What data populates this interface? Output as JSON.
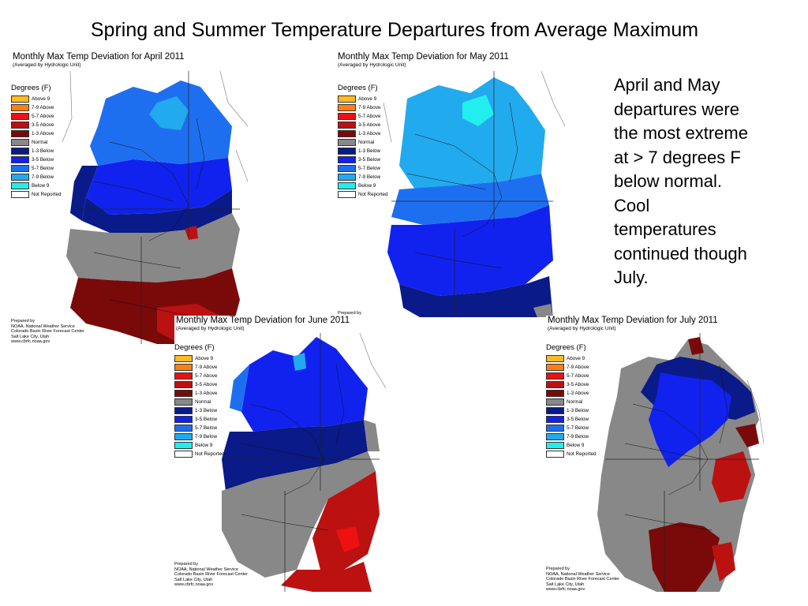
{
  "slide": {
    "title": "Spring and Summer Temperature Departures from Average Maximum",
    "side_text": "April and May departures were the most extreme at > 7 degrees F below normal. Cool temperatures continued though July.",
    "prepared_by_fragment": "Prepared by"
  },
  "legend": {
    "title": "Degrees (F)",
    "items": [
      {
        "label": "Above 9",
        "color": "#ffbb22"
      },
      {
        "label": "7-9 Above",
        "color": "#ff8011"
      },
      {
        "label": "5-7 Above",
        "color": "#ee1111"
      },
      {
        "label": "3-5 Above",
        "color": "#bb1111"
      },
      {
        "label": "1-3 Above",
        "color": "#7a0a0a"
      },
      {
        "label": "Normal",
        "color": "#888888"
      },
      {
        "label": "1-3 Below",
        "color": "#0a1a88"
      },
      {
        "label": "3-5 Below",
        "color": "#1122ee"
      },
      {
        "label": "5-7 Below",
        "color": "#1e6ff0"
      },
      {
        "label": "7-9 Below",
        "color": "#22aaee"
      },
      {
        "label": "Below 9",
        "color": "#22eeee"
      },
      {
        "label": "Not Reported",
        "color": "#ffffff"
      }
    ]
  },
  "credits": {
    "line1": "Prepared by",
    "line2": "NOAA, National Weather Service",
    "line3": "Colorado Basin River Forecast Center",
    "line4": "Salt Lake City, Utah",
    "line5": "www.cbrfc.noaa.gov"
  },
  "maps": [
    {
      "title": "Monthly Max Temp Deviation for April 2011",
      "subtitle": "(Averaged by Hydrologic Unit)"
    },
    {
      "title": "Monthly Max Temp Deviation for May 2011",
      "subtitle": "(Averaged by Hydrologic Unit)"
    },
    {
      "title": "Monthly Max Temp Deviation for June 2011",
      "subtitle": "(Averaged by Hydrologic Unit)"
    },
    {
      "title": "Monthly Max Temp Deviation for July 2011",
      "subtitle": "(Averaged by Hydrologic Unit)"
    }
  ],
  "colors": {
    "normal": "#888888",
    "below_1_3": "#0a1a88",
    "below_3_5": "#1122ee",
    "below_5_7": "#1e6ff0",
    "below_7_9": "#22aaee",
    "below_9": "#22eeee",
    "above_1_3": "#7a0a0a",
    "above_3_5": "#bb1111",
    "above_5_7": "#ee1111"
  }
}
